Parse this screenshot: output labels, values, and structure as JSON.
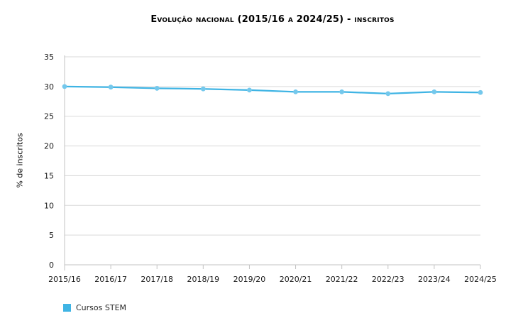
{
  "chart_data": {
    "type": "line",
    "title": "Evolução nacional (2015/16 a 2024/25) - inscritos",
    "xlabel": "",
    "ylabel": "% de inscritos",
    "categories": [
      "2015/16",
      "2016/17",
      "2017/18",
      "2018/19",
      "2019/20",
      "2020/21",
      "2021/22",
      "2022/23",
      "2023/24",
      "2024/25"
    ],
    "series": [
      {
        "name": "Cursos STEM",
        "values": [
          30.0,
          29.9,
          29.7,
          29.6,
          29.4,
          29.1,
          29.1,
          28.8,
          29.1,
          29.0
        ],
        "line_color": "#3FB4E4",
        "marker_color": "#74C8EC"
      }
    ],
    "ylim": [
      0,
      35
    ],
    "yticks": [
      0,
      5,
      10,
      15,
      20,
      25,
      30,
      35
    ],
    "grid": true,
    "legend_position": "bottom-left",
    "gridline_color": "#D9D9D9",
    "axis_color": "#C3C3C3",
    "tick_label_color": "#1a1a1a"
  }
}
